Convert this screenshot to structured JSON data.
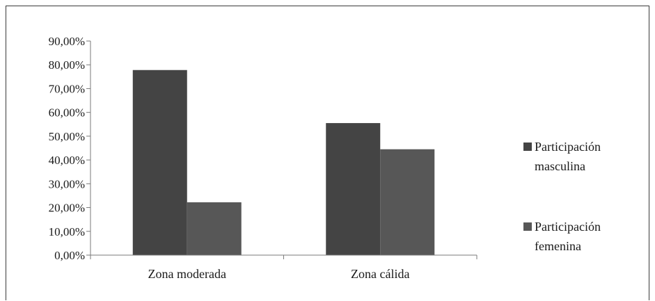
{
  "chart_data": {
    "type": "bar",
    "categories": [
      "Zona moderada",
      "Zona cálida"
    ],
    "series": [
      {
        "name": "Participación masculina",
        "values": [
          77.8,
          55.5
        ],
        "color": "#444444"
      },
      {
        "name": "Participación femenina",
        "values": [
          22.2,
          44.5
        ],
        "color": "#575757"
      }
    ],
    "ylim": [
      0,
      90
    ],
    "yticks": [
      0,
      10,
      20,
      30,
      40,
      50,
      60,
      70,
      80,
      90
    ],
    "ytick_labels": [
      "0,00%",
      "10,00%",
      "20,00%",
      "30,00%",
      "40,00%",
      "50,00%",
      "60,00%",
      "70,00%",
      "80,00%",
      "90,00%"
    ],
    "grid": false,
    "legend_position": "right",
    "legend": [
      {
        "line1": "Participación",
        "line2": "masculina"
      },
      {
        "line1": "Participación",
        "line2": "femenina"
      }
    ]
  }
}
